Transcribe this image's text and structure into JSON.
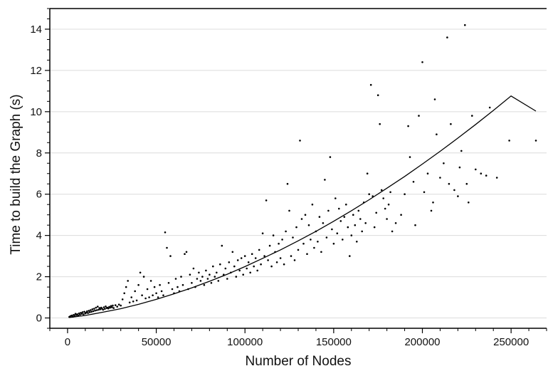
{
  "chart_data": {
    "type": "scatter",
    "title": "",
    "xlabel": "Number of Nodes",
    "ylabel": "Time to build the Graph (s)",
    "xlim": [
      -10000,
      270000
    ],
    "ylim": [
      -0.5,
      15
    ],
    "x_ticks": [
      {
        "value": 0,
        "label": "0"
      },
      {
        "value": 50000,
        "label": "50000"
      },
      {
        "value": 100000,
        "label": "100000"
      },
      {
        "value": 150000,
        "label": "150000"
      },
      {
        "value": 200000,
        "label": "200000"
      },
      {
        "value": 250000,
        "label": "250000"
      }
    ],
    "y_ticks": [
      {
        "value": 0,
        "label": "0"
      },
      {
        "value": 2,
        "label": "2"
      },
      {
        "value": 4,
        "label": "4"
      },
      {
        "value": 6,
        "label": "6"
      },
      {
        "value": 8,
        "label": "8"
      },
      {
        "value": 10,
        "label": "10"
      },
      {
        "value": 12,
        "label": "12"
      },
      {
        "value": 14,
        "label": "14"
      }
    ],
    "grid": {
      "horizontal": true,
      "vertical": false
    },
    "series": [
      {
        "type": "scatter",
        "color": "#000000",
        "points": [
          [
            1000,
            0.05
          ],
          [
            1500,
            0.08
          ],
          [
            2000,
            0.1
          ],
          [
            2500,
            0.12
          ],
          [
            3000,
            0.06
          ],
          [
            3500,
            0.15
          ],
          [
            4000,
            0.1
          ],
          [
            4500,
            0.2
          ],
          [
            5000,
            0.14
          ],
          [
            5500,
            0.18
          ],
          [
            6000,
            0.12
          ],
          [
            6500,
            0.22
          ],
          [
            7000,
            0.16
          ],
          [
            7500,
            0.25
          ],
          [
            8000,
            0.2
          ],
          [
            8500,
            0.28
          ],
          [
            9000,
            0.18
          ],
          [
            9500,
            0.3
          ],
          [
            10000,
            0.22
          ],
          [
            10500,
            0.26
          ],
          [
            11000,
            0.32
          ],
          [
            11500,
            0.24
          ],
          [
            12000,
            0.35
          ],
          [
            12500,
            0.28
          ],
          [
            13000,
            0.38
          ],
          [
            13500,
            0.3
          ],
          [
            14000,
            0.42
          ],
          [
            14500,
            0.33
          ],
          [
            15000,
            0.45
          ],
          [
            15500,
            0.36
          ],
          [
            16000,
            0.5
          ],
          [
            16500,
            0.38
          ],
          [
            17000,
            0.55
          ],
          [
            17500,
            0.4
          ],
          [
            18000,
            0.48
          ],
          [
            18500,
            0.42
          ],
          [
            19000,
            0.5
          ],
          [
            19500,
            0.45
          ],
          [
            20000,
            0.4
          ],
          [
            20500,
            0.52
          ],
          [
            21000,
            0.44
          ],
          [
            21500,
            0.56
          ],
          [
            22000,
            0.48
          ],
          [
            22500,
            0.5
          ],
          [
            23000,
            0.46
          ],
          [
            23500,
            0.54
          ],
          [
            24000,
            0.5
          ],
          [
            24500,
            0.58
          ],
          [
            25000,
            0.52
          ],
          [
            25500,
            0.6
          ],
          [
            26000,
            0.48
          ],
          [
            27000,
            0.62
          ],
          [
            28000,
            0.55
          ],
          [
            29000,
            0.65
          ],
          [
            30000,
            0.6
          ],
          [
            31000,
            0.9
          ],
          [
            32000,
            1.2
          ],
          [
            33000,
            1.5
          ],
          [
            34000,
            1.8
          ],
          [
            35000,
            0.75
          ],
          [
            36000,
            1.0
          ],
          [
            37000,
            0.8
          ],
          [
            38000,
            1.3
          ],
          [
            39000,
            0.85
          ],
          [
            40000,
            1.6
          ],
          [
            41000,
            2.2
          ],
          [
            42000,
            1.1
          ],
          [
            43000,
            2.0
          ],
          [
            44000,
            0.95
          ],
          [
            45000,
            1.4
          ],
          [
            46000,
            1.0
          ],
          [
            47000,
            1.8
          ],
          [
            48000,
            1.1
          ],
          [
            49000,
            1.5
          ],
          [
            50000,
            1.2
          ],
          [
            51000,
            1.0
          ],
          [
            52000,
            1.6
          ],
          [
            53000,
            1.3
          ],
          [
            54000,
            1.1
          ],
          [
            55000,
            4.15
          ],
          [
            56000,
            3.4
          ],
          [
            57000,
            1.7
          ],
          [
            58000,
            3.0
          ],
          [
            59000,
            1.4
          ],
          [
            60000,
            1.2
          ],
          [
            61000,
            1.9
          ],
          [
            62000,
            1.5
          ],
          [
            63000,
            1.3
          ],
          [
            64000,
            2.0
          ],
          [
            65000,
            1.6
          ],
          [
            66000,
            3.1
          ],
          [
            67000,
            3.2
          ],
          [
            68000,
            1.4
          ],
          [
            69000,
            2.1
          ],
          [
            70000,
            1.7
          ],
          [
            71000,
            2.4
          ],
          [
            72000,
            1.5
          ],
          [
            73000,
            1.9
          ],
          [
            74000,
            2.2
          ],
          [
            75000,
            1.8
          ],
          [
            76000,
            2.0
          ],
          [
            77000,
            1.6
          ],
          [
            78000,
            2.3
          ],
          [
            79000,
            1.9
          ],
          [
            80000,
            2.1
          ],
          [
            81000,
            1.7
          ],
          [
            82000,
            2.5
          ],
          [
            83000,
            2.0
          ],
          [
            84000,
            2.2
          ],
          [
            85000,
            1.8
          ],
          [
            86000,
            2.6
          ],
          [
            87000,
            3.5
          ],
          [
            88000,
            2.1
          ],
          [
            89000,
            2.4
          ],
          [
            90000,
            1.9
          ],
          [
            91000,
            2.7
          ],
          [
            92000,
            2.2
          ],
          [
            93000,
            3.2
          ],
          [
            94000,
            2.5
          ],
          [
            95000,
            2.0
          ],
          [
            96000,
            2.8
          ],
          [
            97000,
            2.3
          ],
          [
            98000,
            2.9
          ],
          [
            99000,
            2.1
          ],
          [
            100000,
            3.0
          ],
          [
            101000,
            2.4
          ],
          [
            102000,
            2.7
          ],
          [
            103000,
            2.2
          ],
          [
            104000,
            3.1
          ],
          [
            105000,
            2.5
          ],
          [
            106000,
            2.9
          ],
          [
            107000,
            2.3
          ],
          [
            108000,
            3.3
          ],
          [
            109000,
            2.6
          ],
          [
            110000,
            4.1
          ],
          [
            111000,
            3.0
          ],
          [
            112000,
            5.7
          ],
          [
            113000,
            2.8
          ],
          [
            114000,
            3.5
          ],
          [
            115000,
            2.5
          ],
          [
            116000,
            4.0
          ],
          [
            117000,
            3.2
          ],
          [
            118000,
            2.7
          ],
          [
            119000,
            3.6
          ],
          [
            120000,
            2.9
          ],
          [
            121000,
            3.8
          ],
          [
            122000,
            2.6
          ],
          [
            123000,
            4.2
          ],
          [
            124000,
            6.5
          ],
          [
            125000,
            5.2
          ],
          [
            126000,
            3.0
          ],
          [
            127000,
            3.9
          ],
          [
            128000,
            2.8
          ],
          [
            129000,
            4.4
          ],
          [
            130000,
            3.3
          ],
          [
            131000,
            8.6
          ],
          [
            132000,
            4.8
          ],
          [
            133000,
            3.6
          ],
          [
            134000,
            5.0
          ],
          [
            135000,
            3.1
          ],
          [
            136000,
            4.5
          ],
          [
            137000,
            3.8
          ],
          [
            138000,
            5.5
          ],
          [
            139000,
            3.4
          ],
          [
            140000,
            4.2
          ],
          [
            141000,
            3.7
          ],
          [
            142000,
            4.9
          ],
          [
            143000,
            3.2
          ],
          [
            144000,
            4.6
          ],
          [
            145000,
            6.7
          ],
          [
            146000,
            3.9
          ],
          [
            147000,
            5.2
          ],
          [
            148000,
            7.8
          ],
          [
            149000,
            4.3
          ],
          [
            150000,
            3.6
          ],
          [
            151000,
            5.8
          ],
          [
            152000,
            4.1
          ],
          [
            153000,
            5.3
          ],
          [
            154000,
            4.7
          ],
          [
            155000,
            3.8
          ],
          [
            156000,
            4.9
          ],
          [
            157000,
            5.5
          ],
          [
            158000,
            4.4
          ],
          [
            159000,
            3.0
          ],
          [
            160000,
            4.0
          ],
          [
            161000,
            5.0
          ],
          [
            162000,
            4.5
          ],
          [
            163000,
            3.7
          ],
          [
            164000,
            5.2
          ],
          [
            165000,
            4.8
          ],
          [
            166000,
            4.2
          ],
          [
            167000,
            5.6
          ],
          [
            168000,
            4.6
          ],
          [
            169000,
            7.0
          ],
          [
            170000,
            6.0
          ],
          [
            171000,
            11.3
          ],
          [
            172000,
            5.9
          ],
          [
            173000,
            4.4
          ],
          [
            174000,
            5.1
          ],
          [
            175000,
            10.8
          ],
          [
            176000,
            9.4
          ],
          [
            177000,
            6.2
          ],
          [
            178000,
            5.8
          ],
          [
            179000,
            5.3
          ],
          [
            180000,
            4.8
          ],
          [
            181000,
            5.5
          ],
          [
            182000,
            6.1
          ],
          [
            183000,
            4.2
          ],
          [
            185000,
            4.6
          ],
          [
            188000,
            5.0
          ],
          [
            190000,
            6.0
          ],
          [
            192000,
            9.3
          ],
          [
            193000,
            7.8
          ],
          [
            195000,
            6.6
          ],
          [
            196000,
            4.5
          ],
          [
            198000,
            9.8
          ],
          [
            200000,
            12.4
          ],
          [
            201000,
            6.1
          ],
          [
            203000,
            7.0
          ],
          [
            205000,
            5.2
          ],
          [
            206000,
            5.6
          ],
          [
            207000,
            10.6
          ],
          [
            208000,
            8.9
          ],
          [
            210000,
            6.8
          ],
          [
            212000,
            7.5
          ],
          [
            214000,
            13.6
          ],
          [
            215000,
            6.5
          ],
          [
            216000,
            9.4
          ],
          [
            218000,
            6.2
          ],
          [
            220000,
            5.9
          ],
          [
            221000,
            7.3
          ],
          [
            222000,
            8.1
          ],
          [
            224000,
            14.2
          ],
          [
            225000,
            6.5
          ],
          [
            226000,
            5.6
          ],
          [
            228000,
            9.8
          ],
          [
            230000,
            7.2
          ],
          [
            233000,
            7.0
          ],
          [
            236000,
            6.9
          ],
          [
            238000,
            10.2
          ],
          [
            242000,
            6.8
          ],
          [
            249000,
            8.6
          ],
          [
            264000,
            8.6
          ]
        ]
      },
      {
        "type": "line",
        "color": "#000000",
        "points": [
          [
            1000,
            0.02
          ],
          [
            10000,
            0.12
          ],
          [
            20000,
            0.28
          ],
          [
            30000,
            0.45
          ],
          [
            40000,
            0.66
          ],
          [
            50000,
            0.9
          ],
          [
            60000,
            1.17
          ],
          [
            70000,
            1.46
          ],
          [
            80000,
            1.78
          ],
          [
            90000,
            2.12
          ],
          [
            100000,
            2.49
          ],
          [
            110000,
            2.89
          ],
          [
            120000,
            3.3
          ],
          [
            130000,
            3.74
          ],
          [
            140000,
            4.2
          ],
          [
            150000,
            4.69
          ],
          [
            160000,
            5.2
          ],
          [
            170000,
            5.73
          ],
          [
            180000,
            6.29
          ],
          [
            190000,
            6.86
          ],
          [
            200000,
            7.46
          ],
          [
            210000,
            8.08
          ],
          [
            220000,
            8.72
          ],
          [
            230000,
            9.38
          ],
          [
            240000,
            10.06
          ],
          [
            250000,
            10.76
          ],
          [
            264000,
            10.03
          ]
        ]
      }
    ]
  }
}
